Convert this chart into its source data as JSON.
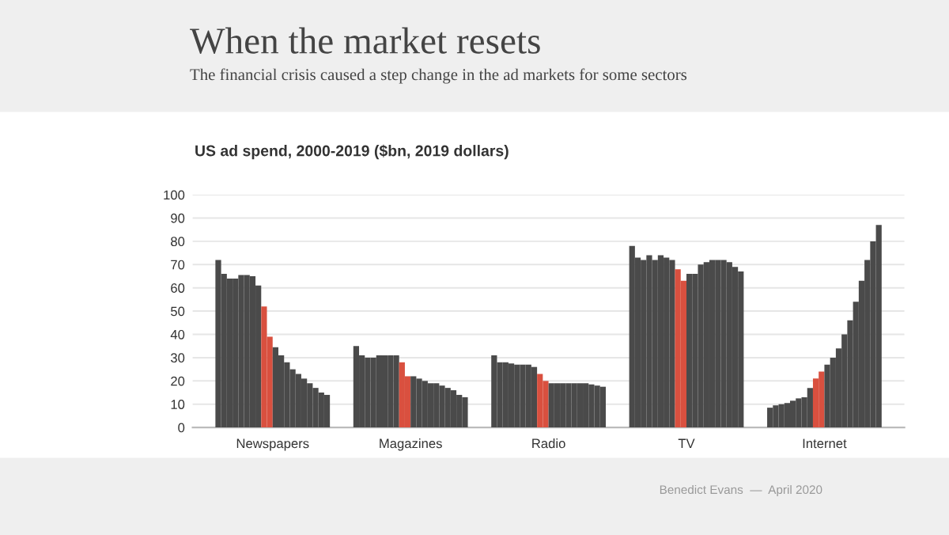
{
  "chart_data": {
    "type": "bar",
    "title": "When the market resets",
    "subtitle": "The financial crisis caused a step change in the ad markets for some sectors",
    "annotations": [
      "US ad spend, 2000-2019 ($bn, 2019 dollars)",
      "Benedict Evans  —  April 2020"
    ],
    "categories": [
      "Newspapers",
      "Magazines",
      "Radio",
      "TV",
      "Internet"
    ],
    "series": [
      {
        "color": "#4a4a4a",
        "values": [
          72,
          35,
          31,
          78,
          8.5
        ]
      },
      {
        "color": "#4a4a4a",
        "values": [
          66,
          31,
          28,
          73,
          9.5
        ]
      },
      {
        "color": "#4a4a4a",
        "values": [
          64,
          30,
          28,
          72,
          10
        ]
      },
      {
        "color": "#4a4a4a",
        "values": [
          64,
          30,
          27.5,
          74,
          10.5
        ]
      },
      {
        "color": "#4a4a4a",
        "values": [
          65.5,
          31,
          27,
          72,
          11.5
        ]
      },
      {
        "color": "#4a4a4a",
        "values": [
          65.5,
          31,
          27,
          74,
          12.5
        ]
      },
      {
        "color": "#4a4a4a",
        "values": [
          65,
          31,
          27,
          73,
          13
        ]
      },
      {
        "color": "#4a4a4a",
        "values": [
          61,
          31,
          26,
          72,
          17
        ]
      },
      {
        "color": "#d9503f",
        "values": [
          52,
          28,
          23,
          68,
          21
        ]
      },
      {
        "color": "#d9503f",
        "values": [
          39,
          22,
          20,
          63,
          24
        ]
      },
      {
        "color": "#4a4a4a",
        "values": [
          34.5,
          22,
          19,
          66,
          27
        ]
      },
      {
        "color": "#4a4a4a",
        "values": [
          31,
          21,
          19,
          66,
          30
        ]
      },
      {
        "color": "#4a4a4a",
        "values": [
          28,
          20,
          19,
          70,
          34
        ]
      },
      {
        "color": "#4a4a4a",
        "values": [
          25,
          19,
          19,
          71,
          40
        ]
      },
      {
        "color": "#4a4a4a",
        "values": [
          23,
          19,
          19,
          72,
          46
        ]
      },
      {
        "color": "#4a4a4a",
        "values": [
          21,
          18,
          19,
          72,
          54
        ]
      },
      {
        "color": "#4a4a4a",
        "values": [
          19,
          17,
          19,
          72,
          63
        ]
      },
      {
        "color": "#4a4a4a",
        "values": [
          17,
          16,
          18.5,
          71,
          72
        ]
      },
      {
        "color": "#4a4a4a",
        "values": [
          15,
          14,
          18,
          69,
          80
        ]
      },
      {
        "color": "#4a4a4a",
        "values": [
          14,
          13,
          17.5,
          67,
          87
        ]
      }
    ],
    "ylim": [
      0,
      100
    ],
    "yticks": [
      0,
      10,
      20,
      30,
      40,
      50,
      60,
      70,
      80,
      90,
      100
    ],
    "grid": "y",
    "legend": false
  }
}
